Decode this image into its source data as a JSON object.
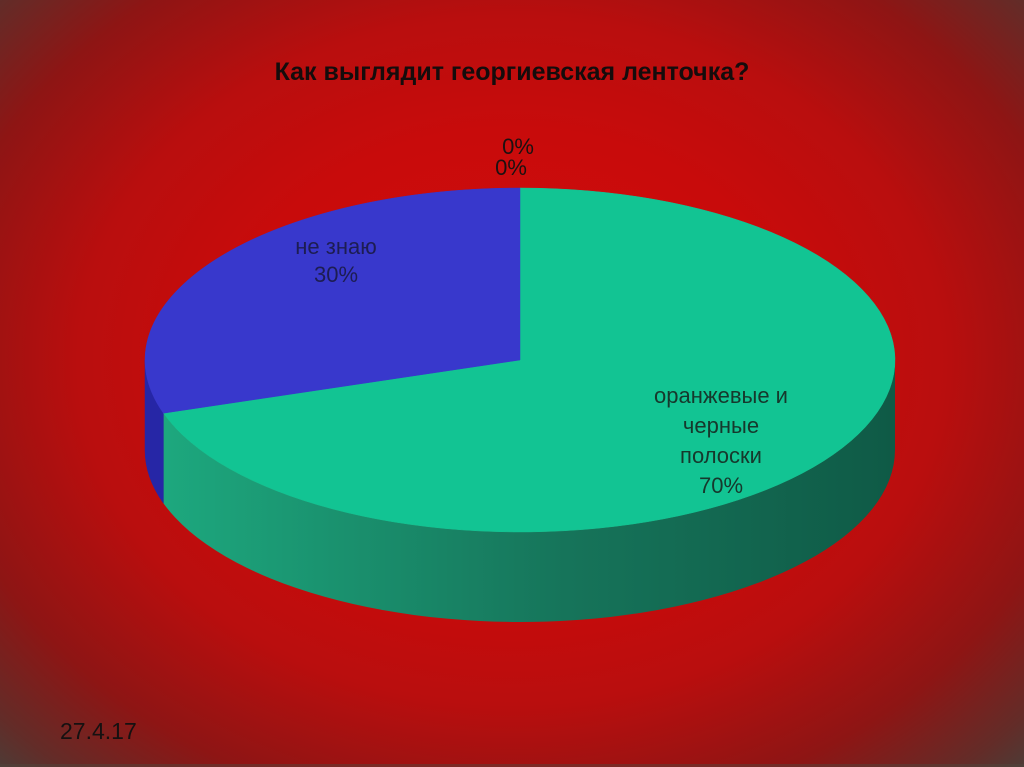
{
  "slide": {
    "date": "27.4.17"
  },
  "chart_data": {
    "type": "pie",
    "title": "Как выглядит георгиевская ленточка?",
    "style": "3d",
    "start_angle_deg": 0,
    "direction": "clockwise",
    "legend": "none",
    "background_color": "#c80b0b",
    "slices": [
      {
        "label": "",
        "value": 0,
        "display": "0%"
      },
      {
        "label": "",
        "value": 0,
        "display": "0%"
      },
      {
        "label": "оранжевые и черные полоски",
        "value": 70,
        "display": "70%",
        "color": "#12c493",
        "side_color_left": "#1da87e",
        "side_color_mid": "#16745a",
        "side_color_right": "#0f5a46",
        "label_lines": [
          "оранжевые и",
          "черные",
          "полоски",
          "70%"
        ]
      },
      {
        "label": "не знаю",
        "value": 30,
        "display": "30%",
        "color": "#3838cc",
        "side_color": "#2626a6",
        "label_lines": [
          "не знаю",
          "30%"
        ]
      }
    ]
  }
}
